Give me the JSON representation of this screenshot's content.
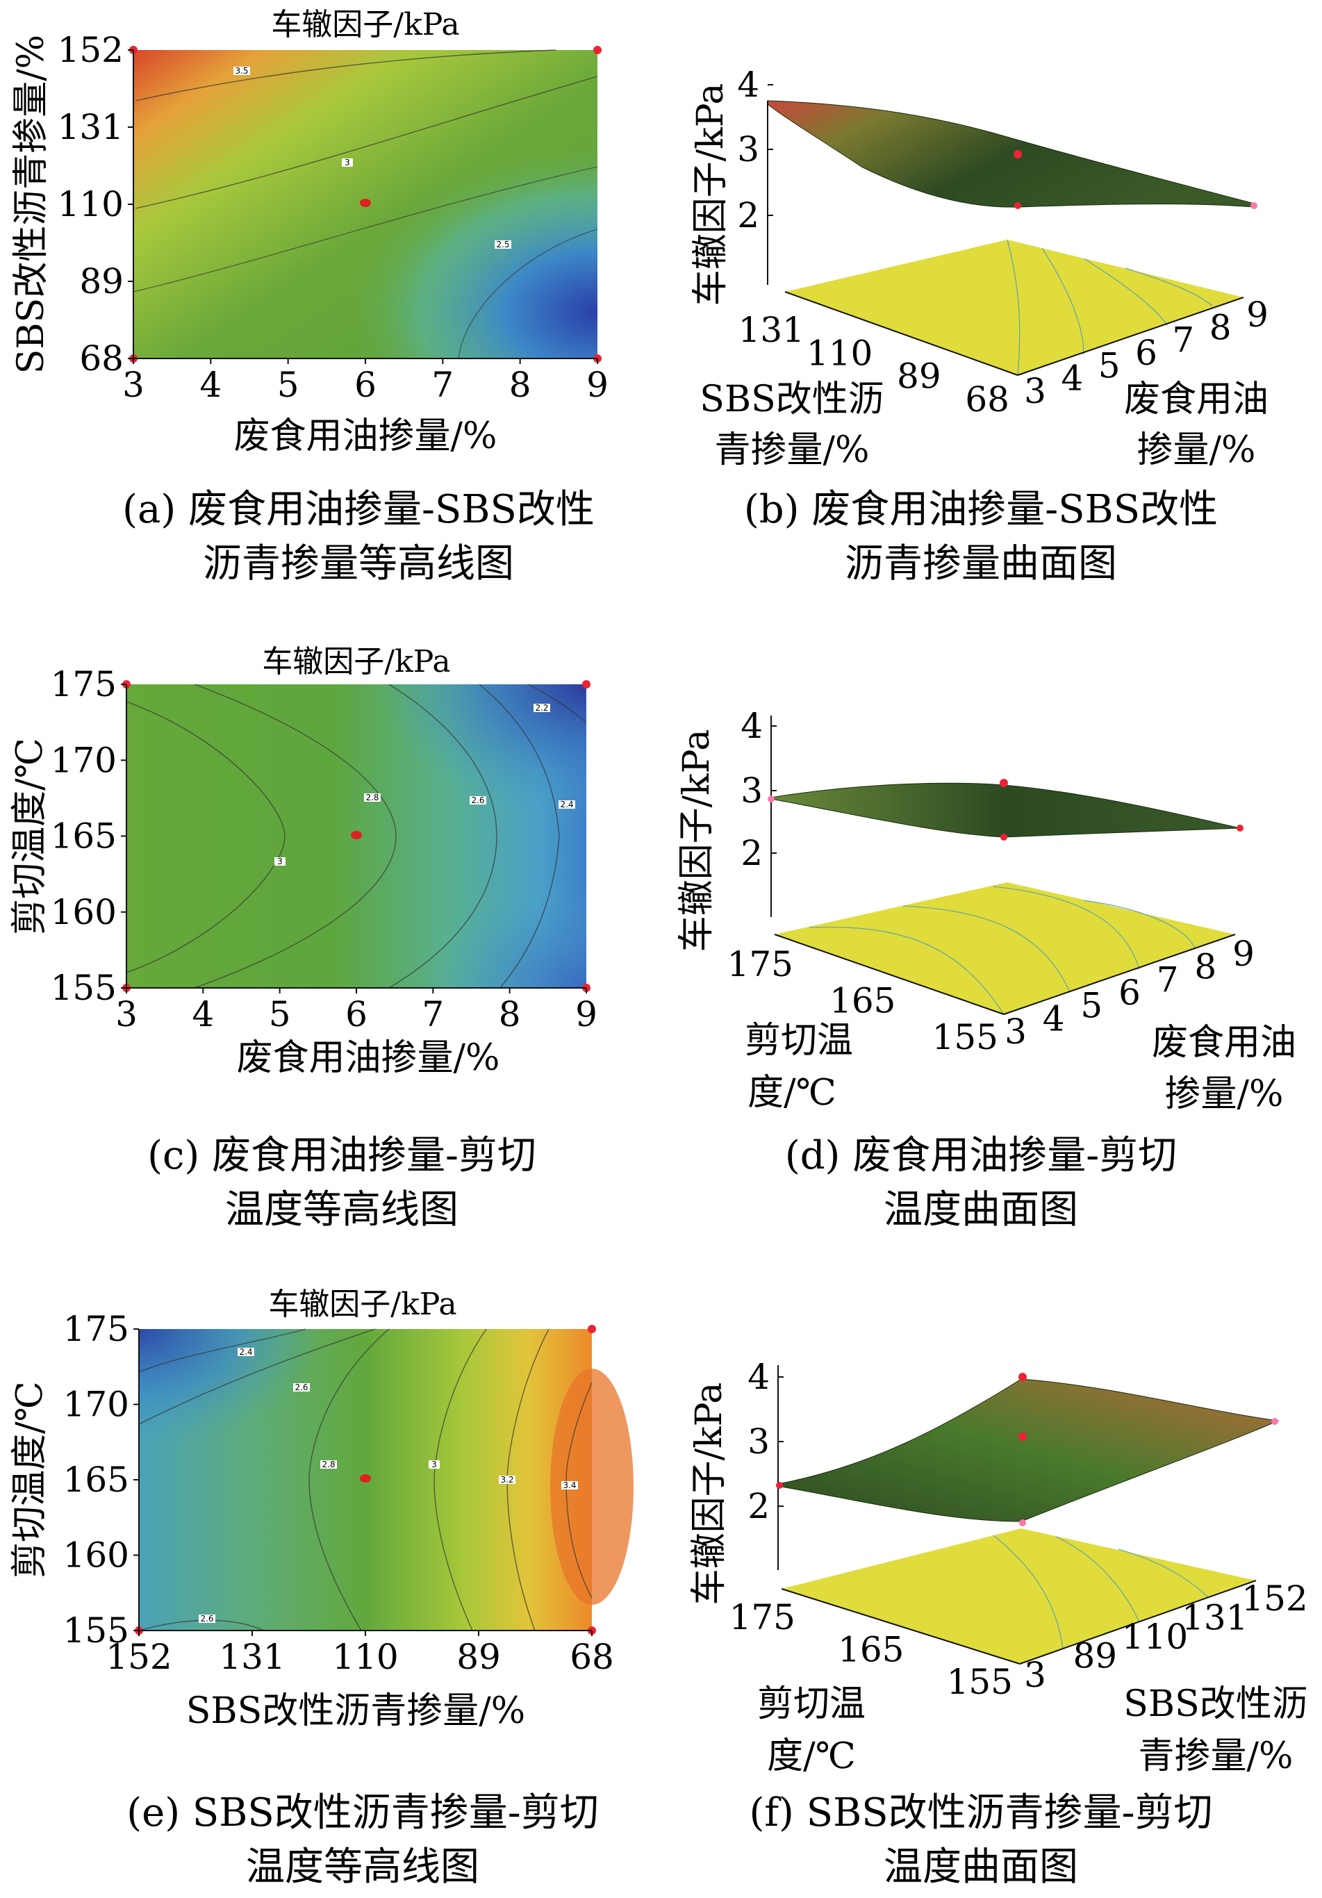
{
  "chart_data": [
    {
      "id": "a",
      "type": "contour",
      "title": "车辙因子/kPa",
      "xlabel": "废食用油掺量/%",
      "ylabel": "SBS改性沥青掺量/%",
      "xticks": [
        "3",
        "4",
        "5",
        "6",
        "7",
        "8",
        "9"
      ],
      "yticks": [
        "68",
        "89",
        "110",
        "131",
        "152"
      ],
      "xlim": [
        3,
        9
      ],
      "ylim": [
        68,
        152
      ],
      "contour_labels": [
        "3.5",
        "3",
        "2.5"
      ],
      "caption": [
        "(a) 废食用油掺量-SBS改性",
        "沥青掺量等高线图"
      ]
    },
    {
      "id": "b",
      "type": "surface",
      "zlabel": "车辙因子/kPa",
      "zticks": [
        "2",
        "3",
        "4"
      ],
      "left_axis_label": [
        "SBS改性沥",
        "青掺量/%"
      ],
      "left_ticks": [
        "131",
        "110",
        "89",
        "68"
      ],
      "right_axis_label": [
        "废食用油",
        "掺量/%"
      ],
      "right_ticks": [
        "3",
        "4",
        "5",
        "6",
        "7",
        "8",
        "9"
      ],
      "caption": [
        "(b) 废食用油掺量-SBS改性",
        "沥青掺量曲面图"
      ]
    },
    {
      "id": "c",
      "type": "contour",
      "title": "车辙因子/kPa",
      "xlabel": "废食用油掺量/%",
      "ylabel": "剪切温度/℃",
      "xticks": [
        "3",
        "4",
        "5",
        "6",
        "7",
        "8",
        "9"
      ],
      "yticks": [
        "155",
        "160",
        "165",
        "170",
        "175"
      ],
      "xlim": [
        3,
        9
      ],
      "ylim": [
        155,
        175
      ],
      "contour_labels": [
        "3",
        "2.8",
        "2.6",
        "2.4",
        "2.2"
      ],
      "caption": [
        "(c) 废食用油掺量-剪切",
        "温度等高线图"
      ]
    },
    {
      "id": "d",
      "type": "surface",
      "zlabel": "车辙因子/kPa",
      "zticks": [
        "2",
        "3",
        "4"
      ],
      "left_axis_label": [
        "剪切温",
        "度/℃"
      ],
      "left_ticks": [
        "175",
        "165",
        "155"
      ],
      "right_axis_label": [
        "废食用油",
        "掺量/%"
      ],
      "right_ticks": [
        "3",
        "4",
        "5",
        "6",
        "7",
        "8",
        "9"
      ],
      "caption": [
        "(d) 废食用油掺量-剪切",
        "温度曲面图"
      ]
    },
    {
      "id": "e",
      "type": "contour",
      "title": "车辙因子/kPa",
      "xlabel": "SBS改性沥青掺量/%",
      "ylabel": "剪切温度/℃",
      "xticks": [
        "152",
        "131",
        "110",
        "89",
        "68"
      ],
      "yticks": [
        "155",
        "160",
        "165",
        "170",
        "175"
      ],
      "xlim": [
        152,
        68
      ],
      "ylim": [
        155,
        175
      ],
      "contour_labels": [
        "2.4",
        "2.6",
        "2.8",
        "3",
        "3.2",
        "3.4",
        "2.6"
      ],
      "caption": [
        "(e) SBS改性沥青掺量-剪切",
        "温度等高线图"
      ]
    },
    {
      "id": "f",
      "type": "surface",
      "zlabel": "车辙因子/kPa",
      "zticks": [
        "2",
        "3",
        "4"
      ],
      "left_axis_label": [
        "剪切温",
        "度/℃"
      ],
      "left_ticks": [
        "175",
        "165",
        "155"
      ],
      "right_axis_label": [
        "SBS改性沥",
        "青掺量/%"
      ],
      "right_ticks": [
        "3",
        "89",
        "110",
        "131",
        "152"
      ],
      "caption": [
        "(f) SBS改性沥青掺量-剪切",
        "温度曲面图"
      ]
    }
  ]
}
